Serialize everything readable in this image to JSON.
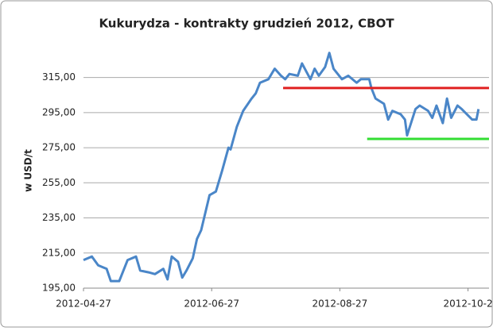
{
  "chart_data": {
    "type": "line",
    "title": "Kukurydza - kontrakty grudzień 2012, CBOT",
    "y_label": "w USD/t",
    "x": [
      "2012-04-27",
      "2012-05-01",
      "2012-05-04",
      "2012-05-08",
      "2012-05-10",
      "2012-05-14",
      "2012-05-18",
      "2012-05-22",
      "2012-05-24",
      "2012-05-28",
      "2012-05-31",
      "2012-06-04",
      "2012-06-06",
      "2012-06-08",
      "2012-06-11",
      "2012-06-13",
      "2012-06-15",
      "2012-06-18",
      "2012-06-20",
      "2012-06-22",
      "2012-06-26",
      "2012-06-29",
      "2012-07-02",
      "2012-07-05",
      "2012-07-06",
      "2012-07-09",
      "2012-07-12",
      "2012-07-16",
      "2012-07-18",
      "2012-07-20",
      "2012-07-24",
      "2012-07-27",
      "2012-07-30",
      "2012-08-01",
      "2012-08-03",
      "2012-08-07",
      "2012-08-09",
      "2012-08-13",
      "2012-08-15",
      "2012-08-17",
      "2012-08-20",
      "2012-08-22",
      "2012-08-24",
      "2012-08-28",
      "2012-08-31",
      "2012-09-04",
      "2012-09-06",
      "2012-09-10",
      "2012-09-11",
      "2012-09-13",
      "2012-09-17",
      "2012-09-19",
      "2012-09-21",
      "2012-09-25",
      "2012-09-27",
      "2012-09-28",
      "2012-10-02",
      "2012-10-04",
      "2012-10-08",
      "2012-10-10",
      "2012-10-12",
      "2012-10-15",
      "2012-10-17",
      "2012-10-19",
      "2012-10-22",
      "2012-10-24",
      "2012-10-29",
      "2012-10-31",
      "2012-11-01"
    ],
    "series": [
      {
        "name": "CBOT",
        "color": "#4a86c8",
        "values": [
          211,
          213,
          208,
          206,
          199,
          199,
          211,
          213,
          205,
          204,
          203,
          206,
          200,
          213,
          210,
          201,
          205,
          212,
          223,
          228,
          248,
          250,
          262,
          275,
          274,
          287,
          296,
          303,
          306,
          312,
          314,
          320,
          316,
          314,
          317,
          316,
          323,
          314,
          320,
          316,
          321,
          329,
          320,
          314,
          316,
          312,
          314,
          314,
          309,
          303,
          300,
          291,
          296,
          294,
          291,
          282,
          297,
          299,
          296,
          292,
          299,
          289,
          303,
          292,
          299,
          297,
          291,
          291,
          297
        ]
      }
    ],
    "xlim": [
      "2012-04-27",
      "2012-11-06"
    ],
    "xticks": [
      "2012-04-27",
      "2012-06-27",
      "2012-08-27",
      {
        "value": "2012-10-27",
        "label": "2012-10-2"
      }
    ],
    "ylim": [
      195,
      332
    ],
    "yticks": [
      {
        "value": 195,
        "label": "195,00"
      },
      {
        "value": 215,
        "label": "215,00"
      },
      {
        "value": 235,
        "label": "235,00"
      },
      {
        "value": 255,
        "label": "255,00"
      },
      {
        "value": 275,
        "label": "275,00"
      },
      {
        "value": 295,
        "label": "295,00"
      },
      {
        "value": 315,
        "label": "315,00"
      }
    ],
    "grid": true,
    "levels": [
      {
        "y": 309,
        "x": [
          "2012-07-31",
          "2012-11-06"
        ],
        "color": "#e02020"
      },
      {
        "y": 280,
        "x": [
          "2012-09-09",
          "2012-11-06"
        ],
        "color": "#33dd33"
      }
    ]
  }
}
